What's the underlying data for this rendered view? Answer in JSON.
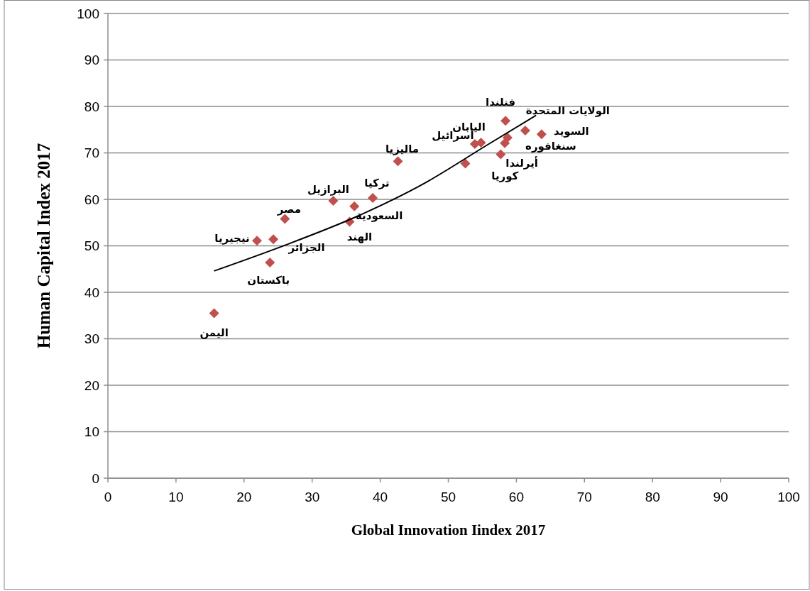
{
  "chart_data": {
    "type": "scatter",
    "xlabel": "Global Innovation Iindex 2017",
    "ylabel": "Human Capital Index 2017",
    "xlim": [
      0,
      100
    ],
    "ylim": [
      0,
      100
    ],
    "xticks": [
      0,
      10,
      20,
      30,
      40,
      50,
      60,
      70,
      80,
      90,
      100
    ],
    "yticks": [
      0,
      10,
      20,
      30,
      40,
      50,
      60,
      70,
      80,
      90,
      100
    ],
    "grid": "y",
    "series": [
      {
        "marker": "diamond",
        "color": "#c0504d",
        "x": [
          15.6,
          21.9,
          24.3,
          23.8,
          26.0,
          33.1,
          36.2,
          35.5,
          38.9,
          42.6,
          53.9,
          54.8,
          58.4,
          61.3,
          63.7,
          58.7,
          58.3,
          57.7,
          52.5
        ],
        "values": [
          35.5,
          51.1,
          51.4,
          46.4,
          55.8,
          59.7,
          58.5,
          55.2,
          60.3,
          68.2,
          71.9,
          72.2,
          76.9,
          74.8,
          74.0,
          73.3,
          72.1,
          69.7,
          67.7
        ]
      },
      {
        "type": "line",
        "color": "#000000",
        "x": [
          15.6,
          25.4,
          37.0,
          46.3,
          55.6,
          62.9
        ],
        "values": [
          44.6,
          49.8,
          56.6,
          63.3,
          71.6,
          78.1
        ]
      }
    ],
    "annotations": [
      {
        "text": "اليمن",
        "x": 15.6,
        "y": 35.5
      },
      {
        "text": "نيجيريا",
        "x": 21.9,
        "y": 51.1
      },
      {
        "text": "الجزائر",
        "x": 24.3,
        "y": 51.4
      },
      {
        "text": "باكستان",
        "x": 23.8,
        "y": 46.4
      },
      {
        "text": "مصر",
        "x": 26.0,
        "y": 55.8
      },
      {
        "text": "البرازيل",
        "x": 33.1,
        "y": 59.7
      },
      {
        "text": "السعودية",
        "x": 36.2,
        "y": 58.5
      },
      {
        "text": "الهند",
        "x": 35.5,
        "y": 55.2
      },
      {
        "text": "تركيا",
        "x": 38.9,
        "y": 60.3
      },
      {
        "text": "ماليزيا",
        "x": 42.6,
        "y": 68.2
      },
      {
        "text": "أسرائيل",
        "x": 53.9,
        "y": 71.9
      },
      {
        "text": "اليابان",
        "x": 54.8,
        "y": 72.2
      },
      {
        "text": "فنلندا",
        "x": 58.4,
        "y": 76.9
      },
      {
        "text": "الولايات المتحدة",
        "x": 61.3,
        "y": 74.8
      },
      {
        "text": "السويد",
        "x": 63.7,
        "y": 74.0
      },
      {
        "text": "سنغافوره",
        "x": 58.7,
        "y": 73.3
      },
      {
        "text": "أيرلندا",
        "x": 58.3,
        "y": 72.1
      },
      {
        "text": "كوريا",
        "x": 57.7,
        "y": 69.7
      }
    ]
  }
}
